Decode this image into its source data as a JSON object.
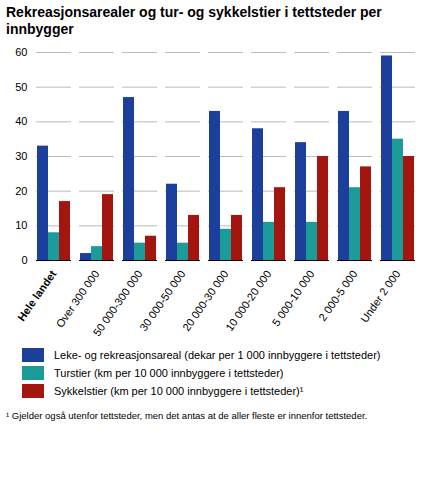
{
  "chart_data": {
    "type": "bar",
    "title": "Rekreasjonsarealer og tur- og sykkelstier i tettsteder per innbygger",
    "categories": [
      "Hele landet",
      "Over 300 000",
      "50 000-300 000",
      "30 000-50 000",
      "20 000-30 000",
      "10 000-20 000",
      "5 000-10 000",
      "2 000-5 000",
      "Under 2 000"
    ],
    "series": [
      {
        "name": "Leke- og rekreasjonsareal (dekar per 1 000 innbyggere i tettsteder)",
        "color": "#1c3f9c",
        "values": [
          33,
          2,
          47,
          22,
          43,
          38,
          34,
          43,
          59
        ]
      },
      {
        "name": "Turstier (km per 10 000 innbyggere i tettsteder)",
        "color": "#1b9c98",
        "values": [
          8,
          4,
          5,
          5,
          9,
          11,
          11,
          21,
          35
        ]
      },
      {
        "name": "Sykkelstier (km per 10 000 innbyggere i tettsteder)¹",
        "color": "#a3150f",
        "values": [
          17,
          19,
          7,
          13,
          13,
          21,
          30,
          27,
          30
        ]
      }
    ],
    "ylim": [
      0,
      60
    ],
    "yticks": [
      0,
      10,
      20,
      30,
      40,
      50,
      60
    ],
    "grid": true,
    "legend": "bottom",
    "caption": "¹ Gjelder også utenfor tettsteder, men det antas at de aller fleste er innenfor tettsteder."
  }
}
